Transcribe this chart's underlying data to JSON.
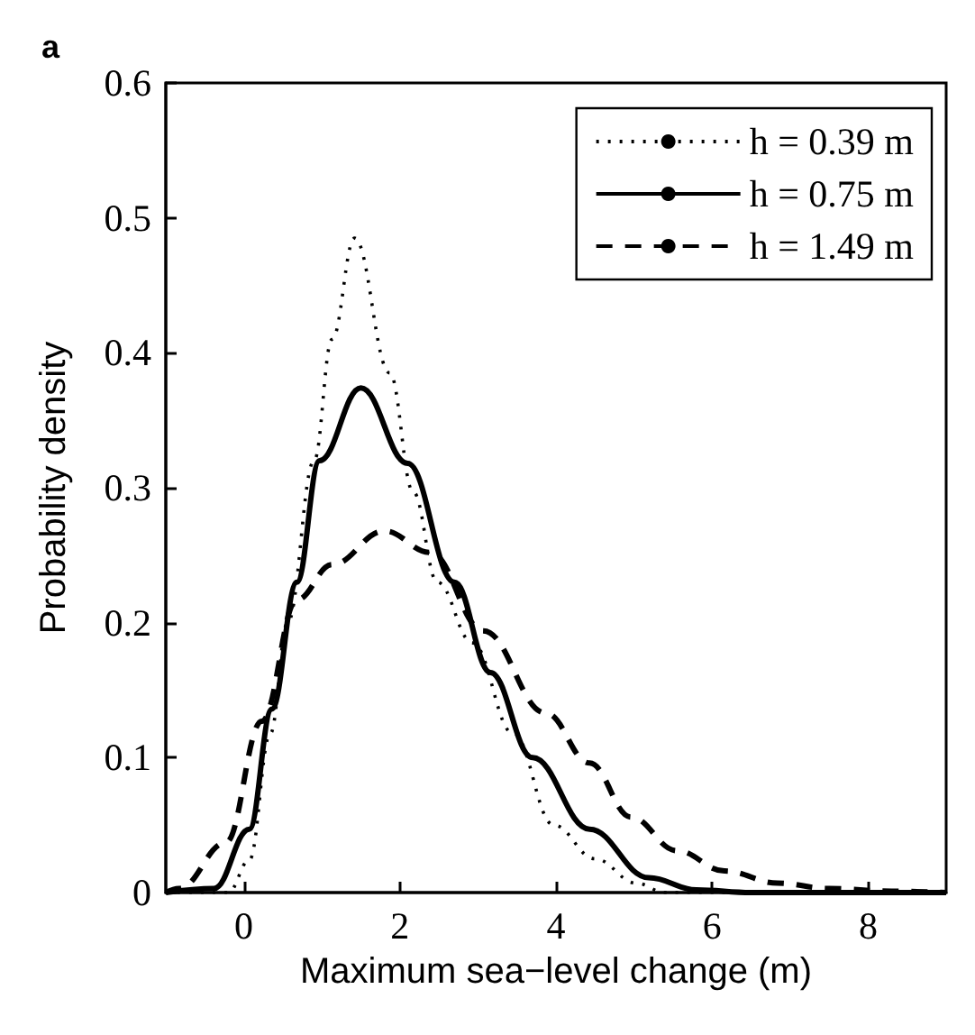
{
  "chart_data": {
    "type": "line",
    "title": "a",
    "xlabel": "Maximum sea−level change (m)",
    "ylabel": "Probability density",
    "xlim": [
      -1,
      9
    ],
    "xticks": [
      0,
      2,
      4,
      6,
      8
    ],
    "ylim": [
      0,
      0.6
    ],
    "yticks": [
      0,
      0.1,
      0.2,
      0.3,
      0.4,
      0.5,
      0.6
    ],
    "grid": false,
    "legend": "top right",
    "marker": "none",
    "series": [
      {
        "name": "h = 0.39 m",
        "color": "#000000",
        "line_style": "dotted",
        "x": [
          -1,
          -0.2,
          0.07,
          0.34,
          0.56,
          0.9,
          1.13,
          1.42,
          1.87,
          2.17,
          2.48,
          2.93,
          3.45,
          3.97,
          4.5,
          5.03,
          5.4,
          9
        ],
        "values": [
          0,
          0,
          0.024,
          0.118,
          0.2,
          0.32,
          0.41,
          0.485,
          0.385,
          0.297,
          0.23,
          0.185,
          0.118,
          0.05,
          0.025,
          0.007,
          0,
          0
        ]
      },
      {
        "name": "h = 0.75 m",
        "color": "#000000",
        "line_style": "solid",
        "x": [
          -1,
          -0.38,
          0.07,
          0.36,
          0.68,
          0.97,
          1.5,
          2.1,
          2.7,
          3.16,
          3.7,
          4.43,
          5.19,
          5.8,
          6.5,
          9
        ],
        "values": [
          0,
          0.003,
          0.047,
          0.136,
          0.23,
          0.32,
          0.374,
          0.318,
          0.23,
          0.163,
          0.1,
          0.047,
          0.011,
          0.002,
          0,
          0
        ]
      },
      {
        "name": "h = 1.49 m",
        "color": "#000000",
        "line_style": "dashed",
        "x": [
          -1,
          -0.83,
          -0.23,
          0.23,
          0.68,
          1.13,
          1.8,
          2.39,
          3.07,
          3.87,
          4.43,
          4.96,
          5.55,
          6.16,
          6.84,
          7.5,
          8.3,
          9
        ],
        "values": [
          0,
          0.003,
          0.037,
          0.127,
          0.217,
          0.243,
          0.268,
          0.252,
          0.194,
          0.133,
          0.096,
          0.056,
          0.031,
          0.016,
          0.007,
          0.003,
          0.001,
          0
        ]
      }
    ]
  }
}
